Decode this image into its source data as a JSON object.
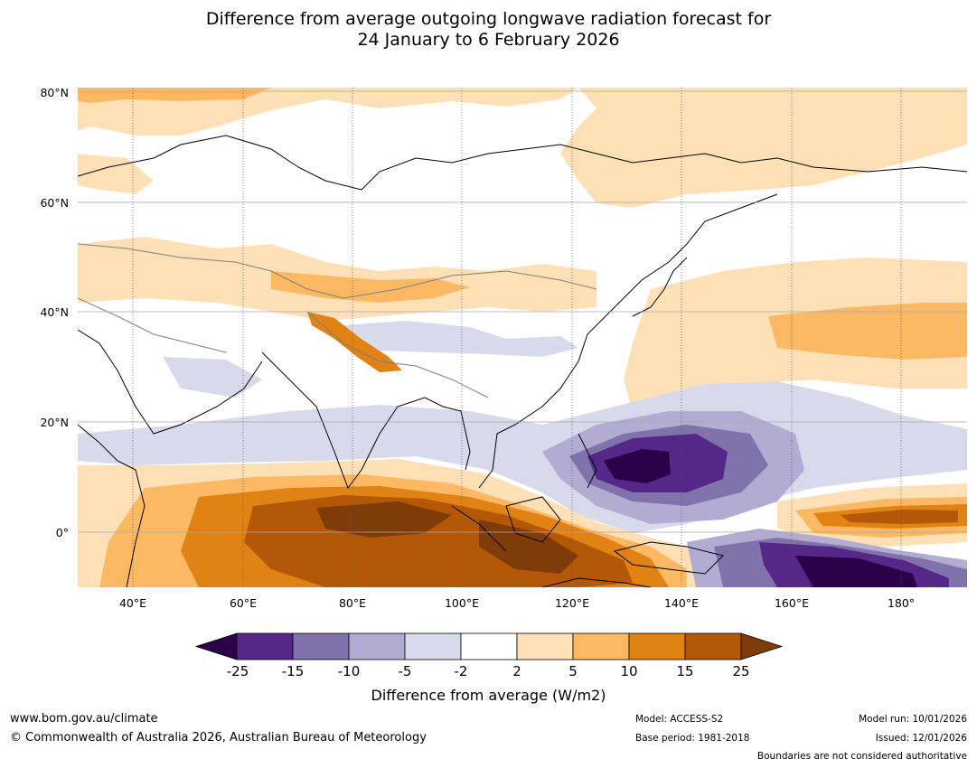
{
  "title": {
    "line1": "Difference from average outgoing longwave radiation forecast for",
    "line2": "24 January to 6 February 2026"
  },
  "map": {
    "lat_labels": [
      "80°N",
      "60°N",
      "40°N",
      "20°N",
      "0°"
    ],
    "lon_labels": [
      "40°E",
      "60°E",
      "80°E",
      "100°E",
      "120°E",
      "140°E",
      "160°E",
      "180°"
    ],
    "lon_range": [
      30,
      192
    ],
    "lat_range": [
      -10,
      81
    ]
  },
  "colorbar": {
    "title": "Difference from average (W/m2)",
    "tick_labels": [
      "-25",
      "-15",
      "-10",
      "-5",
      "-2",
      "2",
      "5",
      "10",
      "15",
      "25"
    ],
    "colors": [
      "#2a0048",
      "#542788",
      "#8073ac",
      "#b2abd2",
      "#d8daeb",
      "#ffffff",
      "#fee0b6",
      "#fdb863",
      "#e08214",
      "#b35806",
      "#7f3b08"
    ]
  },
  "footer": {
    "website": "www.bom.gov.au/climate",
    "copyright": "© Commonwealth of Australia 2026, Australian Bureau of Meteorology",
    "model": "Model: ACCESS-S2",
    "base_period": "Base period: 1981-2018",
    "model_run": "Model run: 10/01/2026",
    "issued": "Issued: 12/01/2026",
    "disclaimer": "Boundaries are not considered authoritative"
  }
}
